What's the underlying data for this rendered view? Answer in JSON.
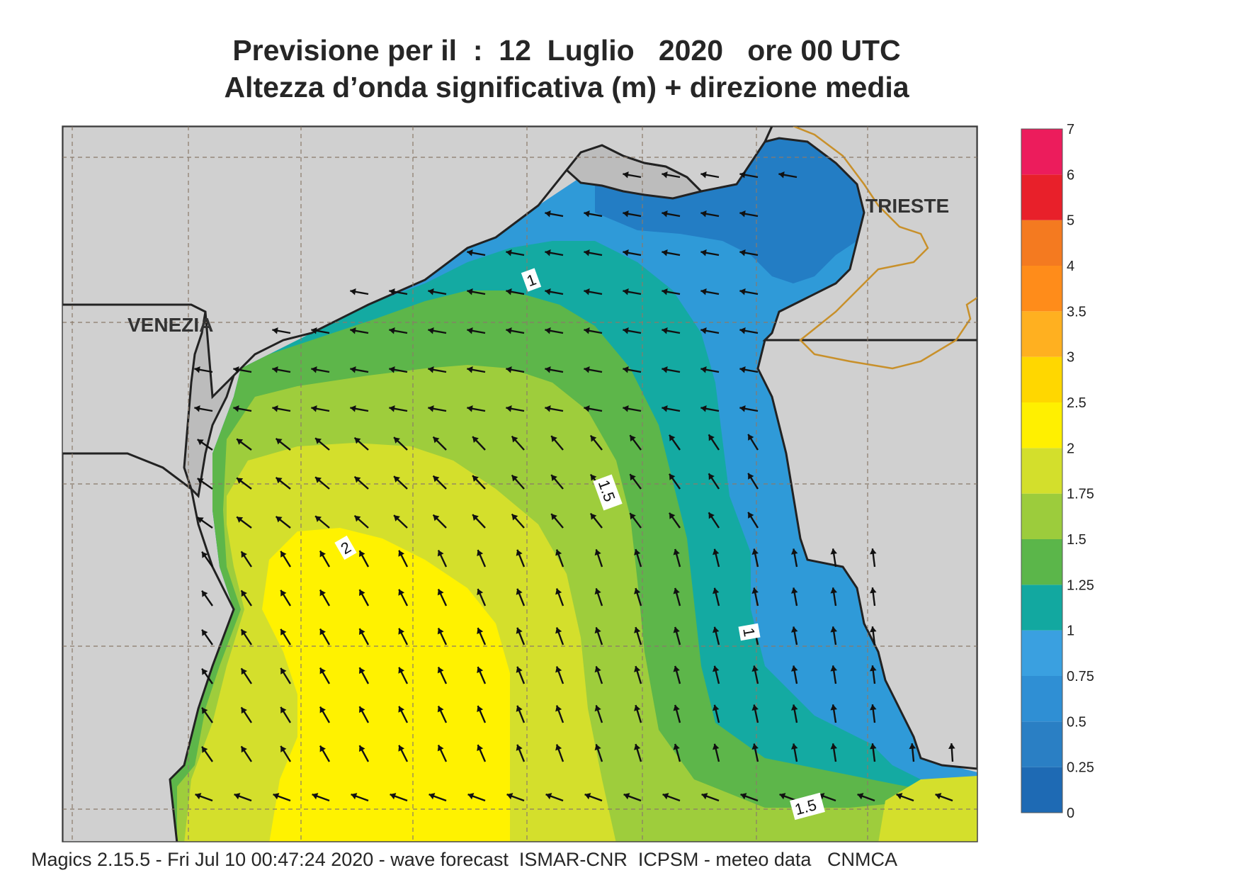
{
  "title": {
    "line1": "Previsione per il  :  12  Luglio   2020   ore 00 UTC",
    "line2": "Altezza d’onda significativa (m) + direzione media"
  },
  "cities": [
    {
      "name": "VENEZIA"
    },
    {
      "name": "TRIESTE"
    }
  ],
  "legend": {
    "labels": [
      "0",
      "0.25",
      "0.5",
      "0.75",
      "1",
      "1.25",
      "1.5",
      "1.75",
      "2",
      "2.5",
      "3",
      "3.5",
      "4",
      "5",
      "6",
      "7"
    ],
    "colors": [
      "#1e6ab4",
      "#2a7fc4",
      "#2f8fd4",
      "#3aa0e0",
      "#12a8a0",
      "#5bb64a",
      "#9ccc3c",
      "#d3df2c",
      "#fff000",
      "#ffd700",
      "#ffb020",
      "#ff8c1a",
      "#f47a20",
      "#e8202a",
      "#ec1c5c"
    ]
  },
  "contour_labels": [
    {
      "text": "1"
    },
    {
      "text": "1.5"
    },
    {
      "text": "2"
    },
    {
      "text": "1"
    },
    {
      "text": "1.5"
    }
  ],
  "footer": "Magics 2.15.5 - Fri Jul 10 00:47:24 2020 - wave forecast  ISMAR-CNR  ICPSM - meteo data   CNMCA",
  "colors": {
    "land": "#d0d0d0",
    "frontier": "#c8902a",
    "grid": "#8a7a6a",
    "arrow": "#111111"
  }
}
